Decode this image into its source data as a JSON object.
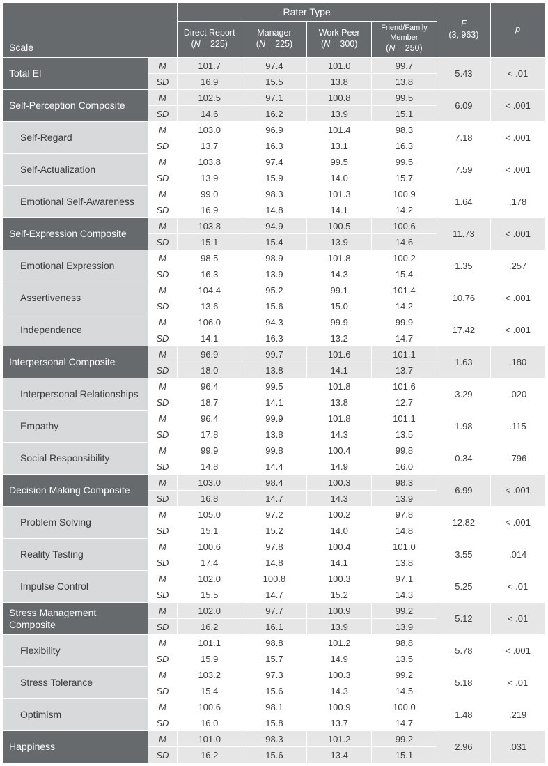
{
  "header": {
    "rater_type": "Rater Type",
    "scale": "Scale",
    "cols": [
      {
        "label": "Direct Report",
        "n_html": "(<i>N</i> = 225)"
      },
      {
        "label": "Manager",
        "n_html": "(<i>N</i> = 225)"
      },
      {
        "label": "Work Peer",
        "n_html": "(<i>N</i> = 300)"
      },
      {
        "label": "Friend/Family Member",
        "n_html": "(<i>N</i> = 250)",
        "small": true
      }
    ],
    "F_html": "<i>F</i><br>(3, 963)",
    "p_html": "<i>p</i>"
  },
  "stats": {
    "M": "M",
    "SD": "SD"
  },
  "rows": [
    {
      "type": "comp",
      "label": "Total EI",
      "M": [
        "101.7",
        "97.4",
        "101.0",
        "99.7"
      ],
      "SD": [
        "16.9",
        "15.5",
        "13.8",
        "13.8"
      ],
      "F": "5.43",
      "p": "< .01"
    },
    {
      "type": "comp",
      "label": "Self-Perception Composite",
      "M": [
        "102.5",
        "97.1",
        "100.8",
        "99.5"
      ],
      "SD": [
        "14.6",
        "16.2",
        "13.9",
        "15.1"
      ],
      "F": "6.09",
      "p": "< .001"
    },
    {
      "type": "sub",
      "label": "Self-Regard",
      "M": [
        "103.0",
        "96.9",
        "101.4",
        "98.3"
      ],
      "SD": [
        "13.7",
        "16.3",
        "13.1",
        "16.3"
      ],
      "F": "7.18",
      "p": "< .001"
    },
    {
      "type": "sub",
      "label": "Self-Actualization",
      "M": [
        "103.8",
        "97.4",
        "99.5",
        "99.5"
      ],
      "SD": [
        "13.9",
        "15.9",
        "14.0",
        "15.7"
      ],
      "F": "7.59",
      "p": "< .001"
    },
    {
      "type": "sub",
      "label": "Emotional Self-Awareness",
      "M": [
        "99.0",
        "98.3",
        "101.3",
        "100.9"
      ],
      "SD": [
        "16.9",
        "14.8",
        "14.1",
        "14.2"
      ],
      "F": "1.64",
      "p": ".178"
    },
    {
      "type": "comp",
      "label": "Self-Expression Composite",
      "M": [
        "103.8",
        "94.9",
        "100.5",
        "100.6"
      ],
      "SD": [
        "15.1",
        "15.4",
        "13.9",
        "14.6"
      ],
      "F": "11.73",
      "p": "< .001"
    },
    {
      "type": "sub",
      "label": "Emotional Expression",
      "M": [
        "98.5",
        "98.9",
        "101.8",
        "100.2"
      ],
      "SD": [
        "16.3",
        "13.9",
        "14.3",
        "15.4"
      ],
      "F": "1.35",
      "p": ".257"
    },
    {
      "type": "sub",
      "label": "Assertiveness",
      "M": [
        "104.4",
        "95.2",
        "99.1",
        "101.4"
      ],
      "SD": [
        "13.6",
        "15.6",
        "15.0",
        "14.2"
      ],
      "F": "10.76",
      "p": "< .001"
    },
    {
      "type": "sub",
      "label": "Independence",
      "M": [
        "106.0",
        "94.3",
        "99.9",
        "99.9"
      ],
      "SD": [
        "14.1",
        "16.3",
        "13.2",
        "14.7"
      ],
      "F": "17.42",
      "p": "< .001"
    },
    {
      "type": "comp",
      "label": "Interpersonal Composite",
      "M": [
        "96.9",
        "99.7",
        "101.6",
        "101.1"
      ],
      "SD": [
        "18.0",
        "13.8",
        "14.1",
        "13.7"
      ],
      "F": "1.63",
      "p": ".180"
    },
    {
      "type": "sub",
      "label": "Interpersonal Relationships",
      "M": [
        "96.4",
        "99.5",
        "101.8",
        "101.6"
      ],
      "SD": [
        "18.7",
        "14.1",
        "13.8",
        "12.7"
      ],
      "F": "3.29",
      "p": ".020"
    },
    {
      "type": "sub",
      "label": "Empathy",
      "M": [
        "96.4",
        "99.9",
        "101.8",
        "101.1"
      ],
      "SD": [
        "17.8",
        "13.8",
        "14.3",
        "13.5"
      ],
      "F": "1.98",
      "p": ".115"
    },
    {
      "type": "sub",
      "label": "Social Responsibility",
      "M": [
        "99.9",
        "99.8",
        "100.4",
        "99.8"
      ],
      "SD": [
        "14.8",
        "14.4",
        "14.9",
        "16.0"
      ],
      "F": "0.34",
      "p": ".796"
    },
    {
      "type": "comp",
      "label": "Decision Making Composite",
      "M": [
        "103.0",
        "98.4",
        "100.3",
        "98.3"
      ],
      "SD": [
        "16.8",
        "14.7",
        "14.3",
        "13.9"
      ],
      "F": "6.99",
      "p": "< .001"
    },
    {
      "type": "sub",
      "label": "Problem Solving",
      "M": [
        "105.0",
        "97.2",
        "100.2",
        "97.8"
      ],
      "SD": [
        "15.1",
        "15.2",
        "14.0",
        "14.8"
      ],
      "F": "12.82",
      "p": "< .001"
    },
    {
      "type": "sub",
      "label": "Reality Testing",
      "M": [
        "100.6",
        "97.8",
        "100.4",
        "101.0"
      ],
      "SD": [
        "17.4",
        "14.8",
        "14.1",
        "13.8"
      ],
      "F": "3.55",
      "p": ".014"
    },
    {
      "type": "sub",
      "label": "Impulse Control",
      "M": [
        "102.0",
        "100.8",
        "100.3",
        "97.1"
      ],
      "SD": [
        "15.5",
        "14.7",
        "15.2",
        "14.3"
      ],
      "F": "5.25",
      "p": "< .01"
    },
    {
      "type": "comp",
      "label": "Stress Management Composite",
      "M": [
        "102.0",
        "97.7",
        "100.9",
        "99.2"
      ],
      "SD": [
        "16.2",
        "16.1",
        "13.9",
        "13.9"
      ],
      "F": "5.12",
      "p": "< .01"
    },
    {
      "type": "sub",
      "label": "Flexibility",
      "M": [
        "101.1",
        "98.8",
        "101.2",
        "98.8"
      ],
      "SD": [
        "15.9",
        "15.7",
        "14.9",
        "13.5"
      ],
      "F": "5.78",
      "p": "< .001"
    },
    {
      "type": "sub",
      "label": "Stress Tolerance",
      "M": [
        "103.2",
        "97.3",
        "100.3",
        "99.2"
      ],
      "SD": [
        "15.4",
        "15.6",
        "14.3",
        "14.5"
      ],
      "F": "5.18",
      "p": "< .01"
    },
    {
      "type": "sub",
      "label": "Optimism",
      "M": [
        "100.6",
        "98.1",
        "100.9",
        "100.0"
      ],
      "SD": [
        "16.0",
        "15.8",
        "13.7",
        "14.7"
      ],
      "F": "1.48",
      "p": ".219"
    },
    {
      "type": "comp",
      "label": "Happiness",
      "M": [
        "101.0",
        "98.3",
        "101.2",
        "99.2"
      ],
      "SD": [
        "16.2",
        "15.6",
        "13.4",
        "15.1"
      ],
      "F": "2.96",
      "p": ".031"
    }
  ]
}
